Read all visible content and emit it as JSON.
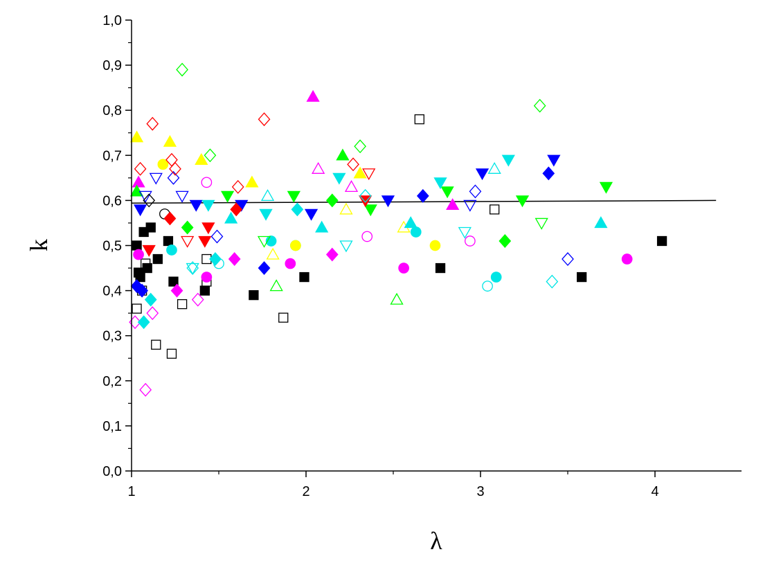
{
  "chart_data": {
    "type": "scatter",
    "title": "",
    "xlabel": "λ",
    "ylabel": "k",
    "xlim": [
      1,
      4.5
    ],
    "ylim": [
      0,
      1
    ],
    "grid": false,
    "legend": "none",
    "x_ticks": [
      "1",
      "2",
      "3",
      "4"
    ],
    "y_ticks": [
      "0,0",
      "0,1",
      "0,2",
      "0,3",
      "0,4",
      "0,5",
      "0,6",
      "0,7",
      "0,8",
      "0,9",
      "1,0"
    ],
    "fit_line": {
      "x": [
        1.0,
        4.35
      ],
      "y": [
        0.594,
        0.6
      ],
      "color": "#000000"
    },
    "series": [
      {
        "marker": "square",
        "filled": true,
        "color": "#000000",
        "points": [
          [
            1.03,
            0.5
          ],
          [
            1.04,
            0.44
          ],
          [
            1.05,
            0.43
          ],
          [
            1.07,
            0.53
          ],
          [
            1.09,
            0.45
          ],
          [
            1.11,
            0.54
          ],
          [
            1.15,
            0.47
          ],
          [
            1.21,
            0.51
          ],
          [
            1.24,
            0.42
          ],
          [
            1.42,
            0.4
          ],
          [
            1.7,
            0.39
          ],
          [
            1.99,
            0.43
          ],
          [
            2.77,
            0.45
          ],
          [
            3.58,
            0.43
          ],
          [
            4.04,
            0.51
          ]
        ]
      },
      {
        "marker": "square",
        "filled": false,
        "color": "#000000",
        "points": [
          [
            1.03,
            0.36
          ],
          [
            1.06,
            0.4
          ],
          [
            1.08,
            0.46
          ],
          [
            1.14,
            0.28
          ],
          [
            1.23,
            0.26
          ],
          [
            1.29,
            0.37
          ],
          [
            1.43,
            0.47
          ],
          [
            1.43,
            0.42
          ],
          [
            1.87,
            0.34
          ],
          [
            2.65,
            0.78
          ],
          [
            3.08,
            0.58
          ]
        ]
      },
      {
        "marker": "circle",
        "filled": true,
        "color": "#ff00ff",
        "points": [
          [
            1.04,
            0.48
          ],
          [
            1.43,
            0.43
          ],
          [
            1.91,
            0.46
          ],
          [
            2.56,
            0.45
          ],
          [
            3.84,
            0.47
          ]
        ]
      },
      {
        "marker": "circle",
        "filled": false,
        "color": "#ff00ff",
        "points": [
          [
            1.43,
            0.64
          ],
          [
            2.35,
            0.52
          ],
          [
            2.94,
            0.51
          ]
        ]
      },
      {
        "marker": "circle",
        "filled": true,
        "color": "#00e5e5",
        "points": [
          [
            1.23,
            0.49
          ],
          [
            1.8,
            0.51
          ],
          [
            2.63,
            0.53
          ],
          [
            3.09,
            0.43
          ]
        ]
      },
      {
        "marker": "circle",
        "filled": false,
        "color": "#00e5e5",
        "points": [
          [
            1.5,
            0.46
          ],
          [
            1.94,
            0.5
          ],
          [
            3.04,
            0.41
          ]
        ]
      },
      {
        "marker": "circle",
        "filled": true,
        "color": "#ffff00",
        "points": [
          [
            1.18,
            0.68
          ],
          [
            1.94,
            0.5
          ],
          [
            2.74,
            0.5
          ]
        ]
      },
      {
        "marker": "circle",
        "filled": false,
        "color": "#000000",
        "points": [
          [
            1.19,
            0.57
          ]
        ]
      },
      {
        "marker": "triangle-up",
        "filled": true,
        "color": "#ff00ff",
        "points": [
          [
            1.04,
            0.64
          ],
          [
            2.04,
            0.83
          ],
          [
            2.84,
            0.59
          ]
        ]
      },
      {
        "marker": "triangle-up",
        "filled": false,
        "color": "#ff00ff",
        "points": [
          [
            2.07,
            0.67
          ],
          [
            2.26,
            0.63
          ]
        ]
      },
      {
        "marker": "triangle-up",
        "filled": true,
        "color": "#00ff00",
        "points": [
          [
            1.03,
            0.62
          ],
          [
            2.21,
            0.7
          ]
        ]
      },
      {
        "marker": "triangle-up",
        "filled": false,
        "color": "#00ff00",
        "points": [
          [
            1.83,
            0.41
          ],
          [
            2.52,
            0.38
          ]
        ]
      },
      {
        "marker": "triangle-up",
        "filled": true,
        "color": "#ffff00",
        "points": [
          [
            1.03,
            0.74
          ],
          [
            1.22,
            0.73
          ],
          [
            1.4,
            0.69
          ],
          [
            1.69,
            0.64
          ],
          [
            2.31,
            0.66
          ]
        ]
      },
      {
        "marker": "triangle-up",
        "filled": false,
        "color": "#ffff00",
        "points": [
          [
            1.81,
            0.48
          ],
          [
            2.23,
            0.58
          ],
          [
            2.56,
            0.54
          ]
        ]
      },
      {
        "marker": "triangle-up",
        "filled": true,
        "color": "#00e5e5",
        "points": [
          [
            1.57,
            0.56
          ],
          [
            2.09,
            0.54
          ],
          [
            2.6,
            0.55
          ],
          [
            3.69,
            0.55
          ]
        ]
      },
      {
        "marker": "triangle-up",
        "filled": false,
        "color": "#00e5e5",
        "points": [
          [
            1.78,
            0.61
          ],
          [
            3.08,
            0.67
          ]
        ]
      },
      {
        "marker": "triangle-down",
        "filled": true,
        "color": "#0000ff",
        "points": [
          [
            1.05,
            0.58
          ],
          [
            1.37,
            0.59
          ],
          [
            1.63,
            0.59
          ],
          [
            2.03,
            0.57
          ],
          [
            2.47,
            0.6
          ],
          [
            3.01,
            0.66
          ],
          [
            3.42,
            0.69
          ]
        ]
      },
      {
        "marker": "triangle-down",
        "filled": false,
        "color": "#0000ff",
        "points": [
          [
            1.08,
            0.61
          ],
          [
            1.14,
            0.65
          ],
          [
            1.29,
            0.61
          ],
          [
            2.94,
            0.59
          ]
        ]
      },
      {
        "marker": "triangle-down",
        "filled": true,
        "color": "#00ff00",
        "points": [
          [
            1.55,
            0.61
          ],
          [
            1.93,
            0.61
          ],
          [
            2.37,
            0.58
          ],
          [
            2.81,
            0.62
          ],
          [
            3.24,
            0.6
          ],
          [
            3.72,
            0.63
          ]
        ]
      },
      {
        "marker": "triangle-down",
        "filled": false,
        "color": "#00ff00",
        "points": [
          [
            1.76,
            0.51
          ],
          [
            3.35,
            0.55
          ]
        ]
      },
      {
        "marker": "triangle-down",
        "filled": true,
        "color": "#00e5e5",
        "points": [
          [
            1.44,
            0.59
          ],
          [
            1.77,
            0.57
          ],
          [
            2.19,
            0.65
          ],
          [
            2.77,
            0.64
          ],
          [
            3.16,
            0.69
          ]
        ]
      },
      {
        "marker": "triangle-down",
        "filled": false,
        "color": "#00e5e5",
        "points": [
          [
            1.35,
            0.45
          ],
          [
            2.23,
            0.5
          ],
          [
            2.91,
            0.53
          ]
        ]
      },
      {
        "marker": "triangle-down",
        "filled": true,
        "color": "#ff0000",
        "points": [
          [
            1.1,
            0.49
          ],
          [
            1.42,
            0.51
          ],
          [
            1.44,
            0.54
          ],
          [
            2.34,
            0.6
          ]
        ]
      },
      {
        "marker": "triangle-down",
        "filled": false,
        "color": "#ff0000",
        "points": [
          [
            1.32,
            0.51
          ],
          [
            2.36,
            0.66
          ]
        ]
      },
      {
        "marker": "diamond",
        "filled": true,
        "color": "#0000ff",
        "points": [
          [
            1.03,
            0.41
          ],
          [
            1.06,
            0.4
          ],
          [
            1.76,
            0.45
          ],
          [
            2.67,
            0.61
          ],
          [
            3.39,
            0.66
          ]
        ]
      },
      {
        "marker": "diamond",
        "filled": false,
        "color": "#0000ff",
        "points": [
          [
            1.24,
            0.65
          ],
          [
            1.49,
            0.52
          ],
          [
            2.97,
            0.62
          ],
          [
            3.5,
            0.47
          ]
        ]
      },
      {
        "marker": "diamond",
        "filled": true,
        "color": "#ff00ff",
        "points": [
          [
            1.26,
            0.4
          ],
          [
            1.59,
            0.47
          ],
          [
            2.15,
            0.48
          ]
        ]
      },
      {
        "marker": "diamond",
        "filled": false,
        "color": "#ff00ff",
        "points": [
          [
            1.02,
            0.33
          ],
          [
            1.08,
            0.18
          ],
          [
            1.12,
            0.35
          ],
          [
            1.38,
            0.38
          ]
        ]
      },
      {
        "marker": "diamond",
        "filled": true,
        "color": "#00ff00",
        "points": [
          [
            1.32,
            0.54
          ],
          [
            2.15,
            0.6
          ],
          [
            3.14,
            0.51
          ]
        ]
      },
      {
        "marker": "diamond",
        "filled": false,
        "color": "#00ff00",
        "points": [
          [
            1.29,
            0.89
          ],
          [
            1.45,
            0.7
          ],
          [
            2.31,
            0.72
          ],
          [
            3.34,
            0.81
          ]
        ]
      },
      {
        "marker": "diamond",
        "filled": true,
        "color": "#00e5e5",
        "points": [
          [
            1.07,
            0.33
          ],
          [
            1.11,
            0.38
          ],
          [
            1.48,
            0.47
          ],
          [
            1.95,
            0.58
          ]
        ]
      },
      {
        "marker": "diamond",
        "filled": false,
        "color": "#00e5e5",
        "points": [
          [
            1.35,
            0.45
          ],
          [
            2.34,
            0.61
          ],
          [
            3.41,
            0.42
          ]
        ]
      },
      {
        "marker": "diamond",
        "filled": true,
        "color": "#ff0000",
        "points": [
          [
            1.22,
            0.56
          ],
          [
            1.6,
            0.58
          ]
        ]
      },
      {
        "marker": "diamond",
        "filled": false,
        "color": "#ff0000",
        "points": [
          [
            1.05,
            0.67
          ],
          [
            1.12,
            0.77
          ],
          [
            1.23,
            0.69
          ],
          [
            1.25,
            0.67
          ],
          [
            1.61,
            0.63
          ],
          [
            1.76,
            0.78
          ],
          [
            2.27,
            0.68
          ]
        ]
      },
      {
        "marker": "diamond",
        "filled": false,
        "color": "#000000",
        "points": [
          [
            1.1,
            0.6
          ]
        ]
      }
    ]
  }
}
